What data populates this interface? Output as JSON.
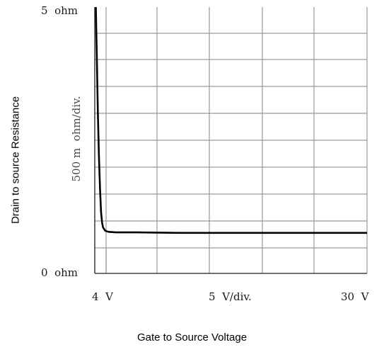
{
  "chart_data": {
    "type": "line",
    "ylabel": "Drain to source Resistance",
    "xlabel": "Gate to Source Voltage",
    "y_max_label": "5  ohm",
    "y_min_label": "0  ohm",
    "y_div_label": "500 m  ohm/div.",
    "x_min_label": "4  V",
    "x_div_label": "5  V/div.",
    "x_max_label": "30  V",
    "xlim": [
      4,
      30
    ],
    "ylim": [
      0,
      5
    ],
    "grid": true,
    "series": [
      {
        "color": "#000000",
        "x": [
          4.1,
          4.2,
          4.3,
          4.4,
          4.5,
          4.6,
          4.7,
          4.8,
          5.0,
          5.3,
          6.0,
          8.0,
          12.0,
          16.0,
          20.0,
          25.0,
          30.0
        ],
        "y": [
          5.0,
          4.0,
          3.0,
          2.2,
          1.6,
          1.15,
          0.95,
          0.86,
          0.8,
          0.78,
          0.77,
          0.77,
          0.76,
          0.76,
          0.76,
          0.76,
          0.76
        ]
      }
    ]
  }
}
